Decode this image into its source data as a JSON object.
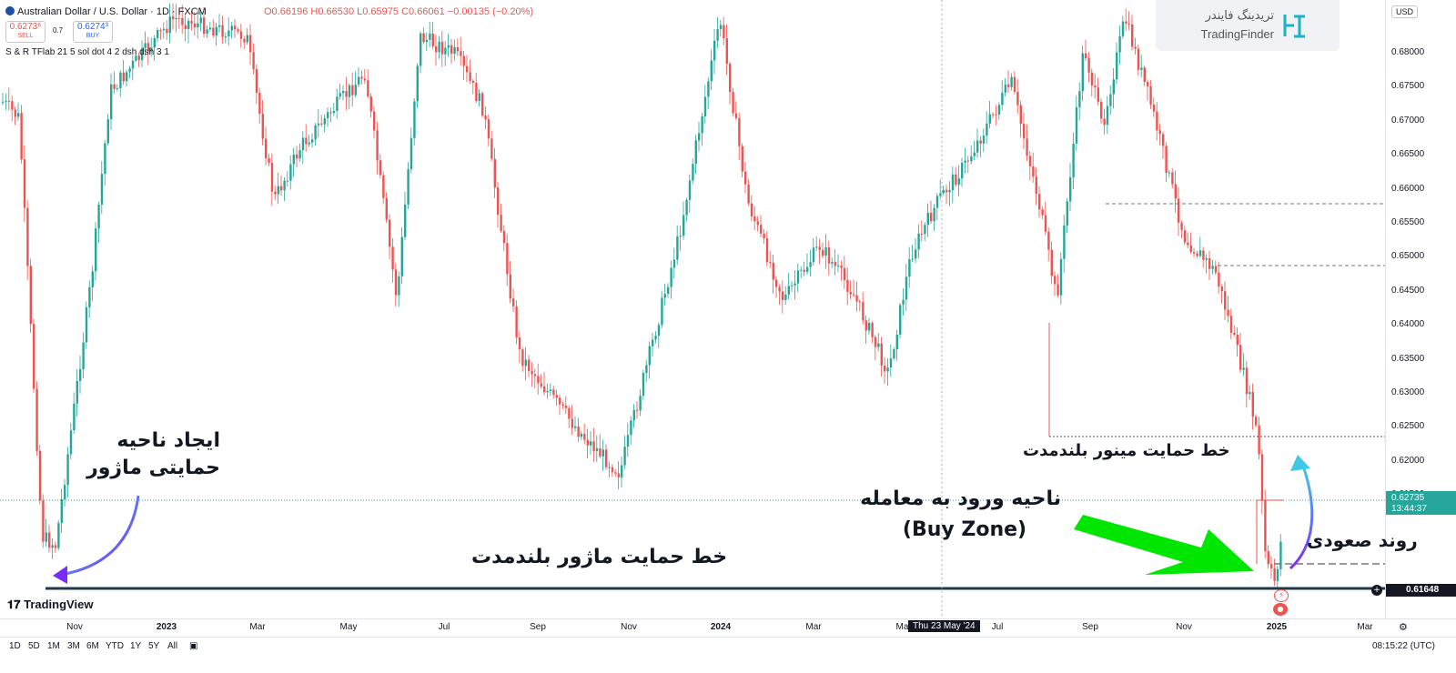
{
  "header": {
    "symbol_title": "Australian Dollar / U.S. Dollar · 1D · FXCM",
    "ohlc": "O0.66196 H0.66530 L0.65975 C0.66061 −0.00135 (−0.20%)",
    "sell_price": "0.6273⁶",
    "sell_label": "SELL",
    "spread": "0.7",
    "buy_price": "0.6274³",
    "buy_label": "BUY",
    "indicator": "S & R TFlab 21 5 sol dot 4 2 dsh dsh 3 1"
  },
  "currency": "USD",
  "logo": {
    "fa": "تریدینگ فایندر",
    "en": "TradingFinder"
  },
  "price_axis": [
    "0.68000",
    "0.67500",
    "0.67000",
    "0.66500",
    "0.66000",
    "0.65500",
    "0.65000",
    "0.64500",
    "0.64000",
    "0.63500",
    "0.63000",
    "0.62500",
    "0.62000",
    "0.61500"
  ],
  "current_price": {
    "value": "0.62735",
    "countdown": "13:44:37",
    "color": "#26a69a"
  },
  "support_price": {
    "value": "0.61648",
    "color": "#131722"
  },
  "time_axis": [
    "Nov",
    "2023",
    "Mar",
    "May",
    "Jul",
    "Sep",
    "Nov",
    "2024",
    "Mar",
    "May",
    "Jul",
    "Sep",
    "Nov",
    "2025",
    "Mar"
  ],
  "crosshair_date": "Thu 23 May '24",
  "timeframes": [
    "1D",
    "5D",
    "1M",
    "3M",
    "6M",
    "YTD",
    "1Y",
    "5Y",
    "All"
  ],
  "clock": "08:15:22 (UTC)",
  "tv_brand": "TradingView",
  "annotations": {
    "major_zone": [
      "ایجاد ناحیه",
      "حمایتی ماژور"
    ],
    "major_line": "خط حمایت ماژور بلندمدت",
    "minor_line": "خط حمایت مینور بلندمدت",
    "buy_zone": [
      "ناحیه ورود به معامله",
      "(Buy Zone)"
    ],
    "uptrend": "روند صعودی"
  },
  "colors": {
    "up": "#26a69a",
    "down": "#ef5350",
    "arrow_green": "#00e600"
  }
}
